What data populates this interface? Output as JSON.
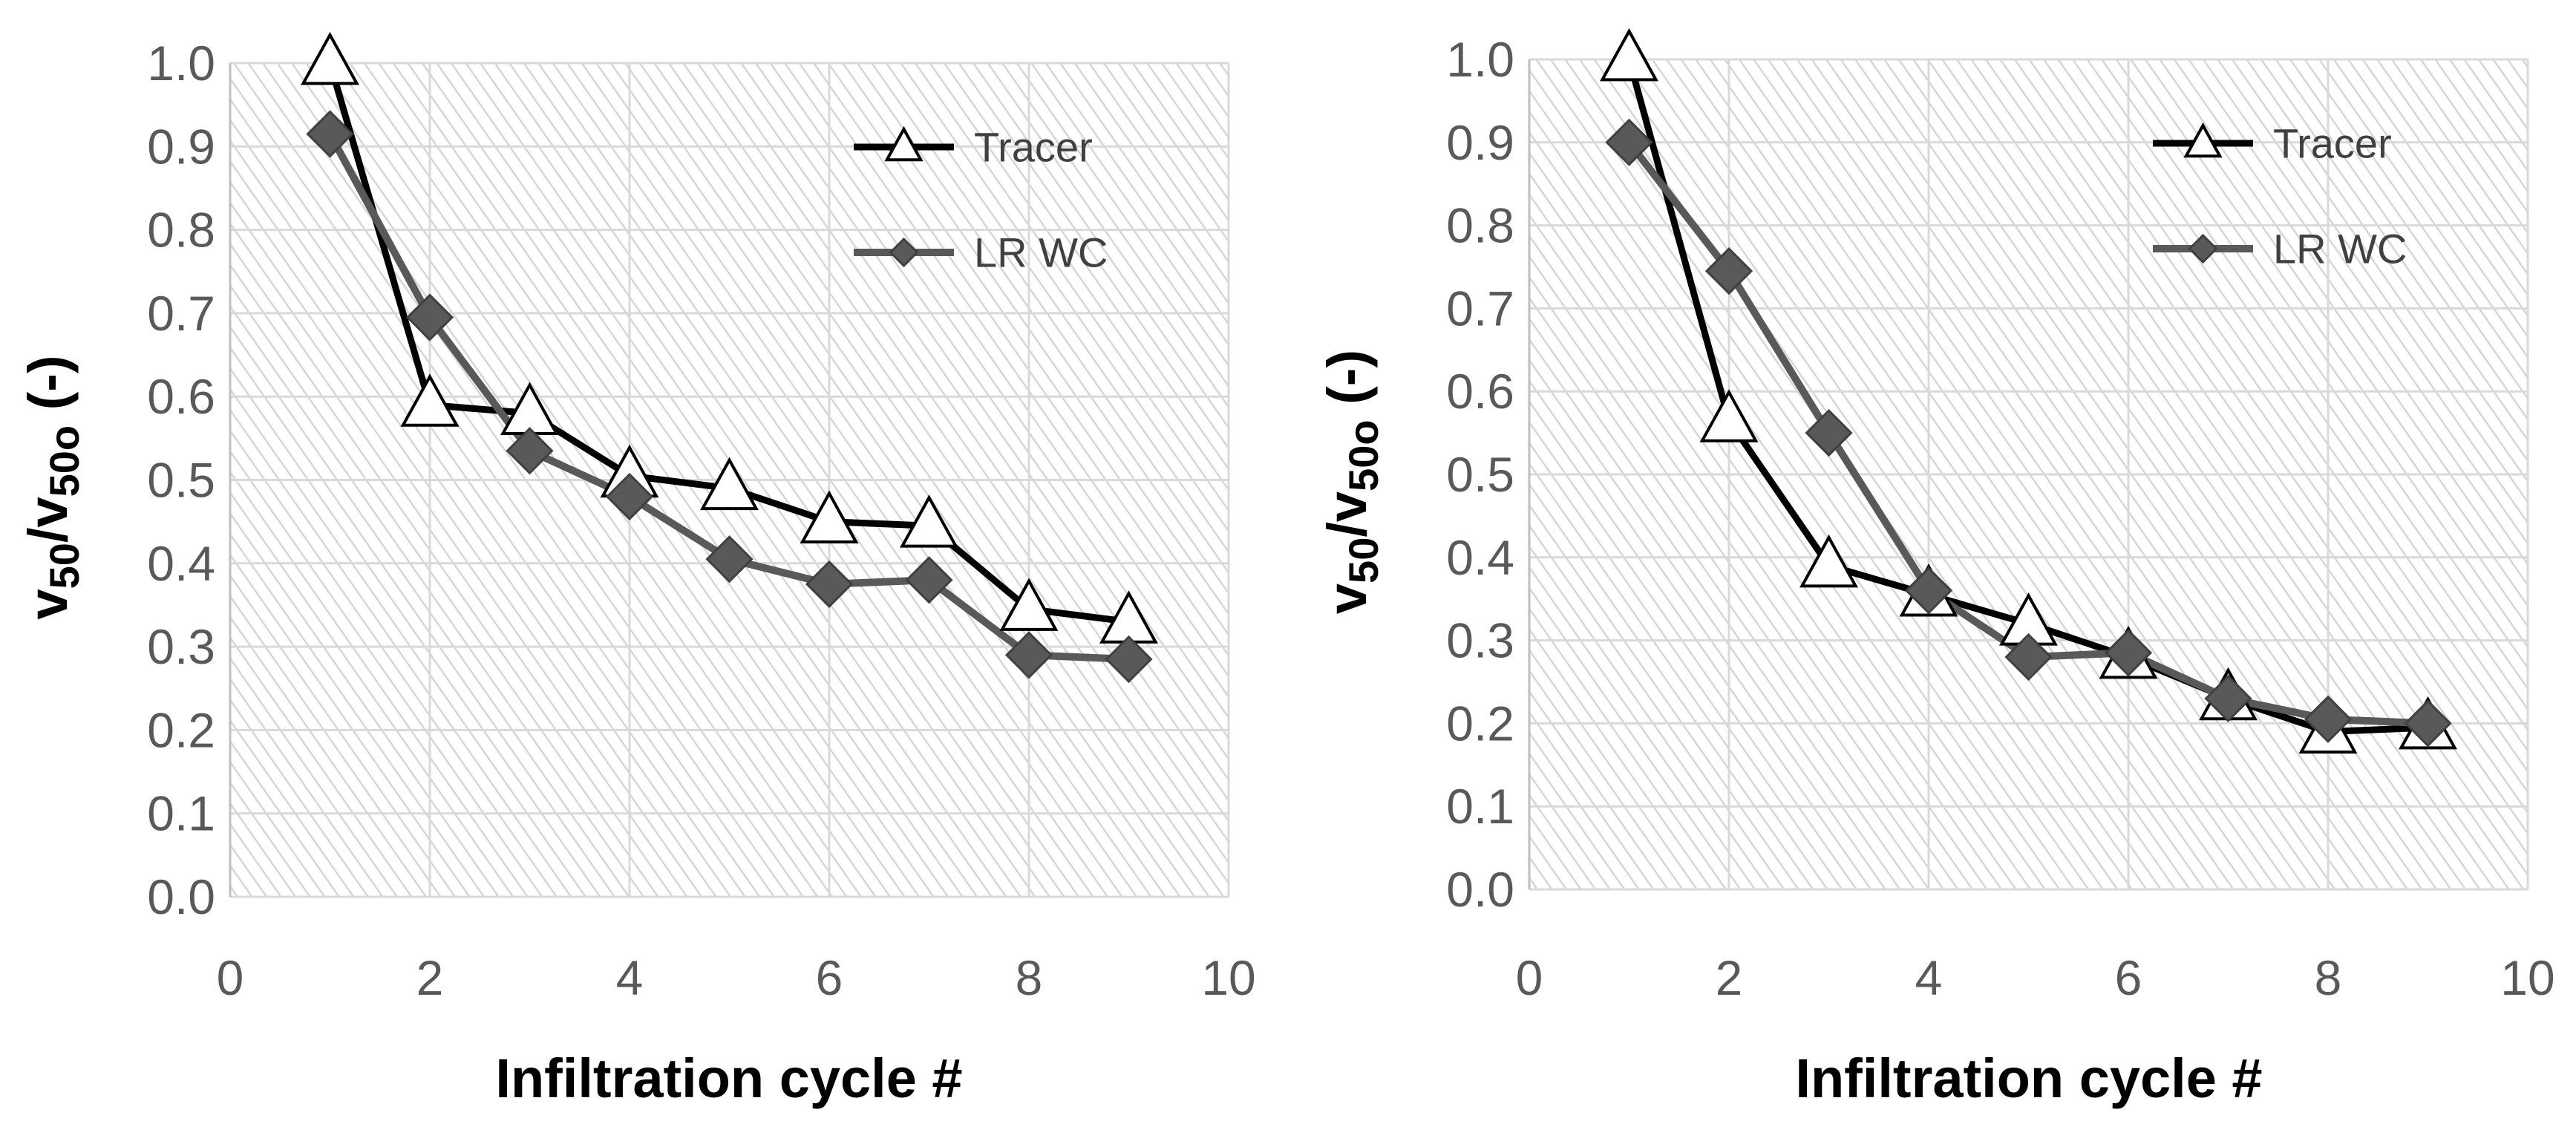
{
  "chart_data": [
    {
      "type": "line",
      "title": "",
      "xlabel": "Infiltration cycle #",
      "ylabel": "v50/v50o (-)",
      "ylabel_parts": {
        "main": "v",
        "sub1": "50",
        "slash": "/",
        "main2": "v",
        "sub2": "50o",
        "suffix": " (-)"
      },
      "xlim": [
        0,
        10
      ],
      "ylim": [
        0,
        1.0
      ],
      "x_ticks": [
        0,
        2,
        4,
        6,
        8,
        10
      ],
      "x_tick_labels": [
        "0",
        "2",
        "4",
        "6",
        "8",
        "10"
      ],
      "y_ticks": [
        0,
        0.1,
        0.2,
        0.3,
        0.4,
        0.5,
        0.6,
        0.7,
        0.8,
        0.9,
        1.0
      ],
      "y_tick_labels": [
        "0.0",
        "0.1",
        "0.2",
        "0.3",
        "0.4",
        "0.5",
        "0.6",
        "0.7",
        "0.8",
        "0.9",
        "1.0"
      ],
      "grid": true,
      "legend_position": "top-right",
      "series": [
        {
          "name": "Tracer",
          "marker": "triangle-open",
          "color": "#000000",
          "x": [
            1,
            2,
            3,
            4,
            5,
            6,
            7,
            8,
            9
          ],
          "y": [
            1.0,
            0.59,
            0.58,
            0.505,
            0.49,
            0.45,
            0.445,
            0.345,
            0.33
          ]
        },
        {
          "name": "LR WC",
          "marker": "diamond-filled",
          "color": "#595959",
          "x": [
            1,
            2,
            3,
            4,
            5,
            6,
            7,
            8,
            9
          ],
          "y": [
            0.915,
            0.695,
            0.535,
            0.48,
            0.405,
            0.375,
            0.38,
            0.29,
            0.285
          ]
        }
      ]
    },
    {
      "type": "line",
      "title": "",
      "xlabel": "Infiltration cycle #",
      "ylabel": "v50/v50o (-)",
      "ylabel_parts": {
        "main": "v",
        "sub1": "50",
        "slash": "/",
        "main2": "v",
        "sub2": "50o",
        "suffix": " (-)"
      },
      "xlim": [
        0,
        10
      ],
      "ylim": [
        0,
        1.0
      ],
      "x_ticks": [
        0,
        2,
        4,
        6,
        8,
        10
      ],
      "x_tick_labels": [
        "0",
        "2",
        "4",
        "6",
        "8",
        "10"
      ],
      "y_ticks": [
        0,
        0.1,
        0.2,
        0.3,
        0.4,
        0.5,
        0.6,
        0.7,
        0.8,
        0.9,
        1.0
      ],
      "y_tick_labels": [
        "0.0",
        "0.1",
        "0.2",
        "0.3",
        "0.4",
        "0.5",
        "0.6",
        "0.7",
        "0.8",
        "0.9",
        "1.0"
      ],
      "grid": true,
      "legend_position": "top-right",
      "series": [
        {
          "name": "Tracer",
          "marker": "triangle-open",
          "color": "#000000",
          "x": [
            1,
            2,
            3,
            4,
            5,
            6,
            7,
            8,
            9
          ],
          "y": [
            1.0,
            0.565,
            0.39,
            0.355,
            0.32,
            0.28,
            0.23,
            0.19,
            0.195
          ]
        },
        {
          "name": "LR WC",
          "marker": "diamond-filled",
          "color": "#595959",
          "x": [
            1,
            2,
            3,
            4,
            5,
            6,
            7,
            8,
            9
          ],
          "y": [
            0.9,
            0.745,
            0.55,
            0.36,
            0.28,
            0.285,
            0.23,
            0.205,
            0.2
          ]
        }
      ]
    }
  ],
  "colors": {
    "plot_background": "#ffffff",
    "hatch": "#d6d6d6",
    "grid": "#d9d9d9",
    "axis": "#bfbfbf"
  }
}
